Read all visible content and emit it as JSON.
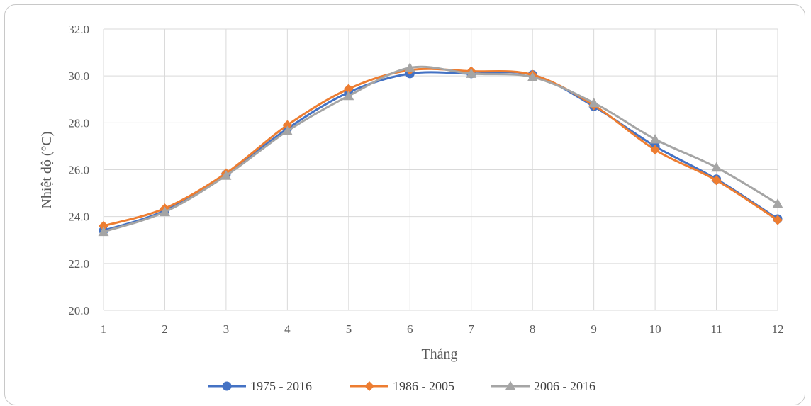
{
  "chart_data": {
    "type": "line",
    "xlabel": "Tháng",
    "ylabel": "Nhiệt độ (°C)",
    "ylim": [
      20.0,
      32.0
    ],
    "yticks": [
      "20.0",
      "22.0",
      "24.0",
      "26.0",
      "28.0",
      "30.0",
      "32.0"
    ],
    "categories": [
      "1",
      "2",
      "3",
      "4",
      "5",
      "6",
      "7",
      "8",
      "9",
      "10",
      "11",
      "12"
    ],
    "grid": true,
    "legend_position": "bottom",
    "series": [
      {
        "name": "1975 - 2016",
        "marker": "circle",
        "color": "#4472C4",
        "values": [
          23.4,
          24.25,
          25.8,
          27.75,
          29.3,
          30.1,
          30.1,
          30.05,
          28.7,
          27.0,
          25.6,
          23.9
        ]
      },
      {
        "name": "1986 - 2005",
        "marker": "diamond",
        "color": "#ED7D31",
        "values": [
          23.6,
          24.35,
          25.85,
          27.9,
          29.45,
          30.25,
          30.2,
          30.05,
          28.75,
          26.85,
          25.55,
          23.85
        ]
      },
      {
        "name": "2006 - 2016",
        "marker": "triangle",
        "color": "#A5A5A5",
        "values": [
          23.35,
          24.2,
          25.75,
          27.65,
          29.15,
          30.35,
          30.1,
          29.95,
          28.85,
          27.3,
          26.1,
          24.55
        ]
      }
    ]
  }
}
